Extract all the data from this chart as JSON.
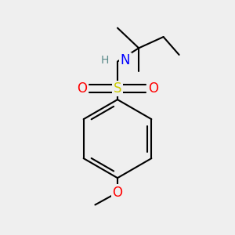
{
  "background_color": "#efefef",
  "atom_colors": {
    "C": "#000000",
    "H": "#5a8a8a",
    "N": "#0000ff",
    "O": "#ff0000",
    "S": "#cccc00"
  },
  "bond_color": "#000000",
  "bond_width": 1.5,
  "font_size_atom": 12,
  "font_size_H": 10,
  "xlim": [
    0.05,
    0.95
  ],
  "ylim": [
    0.02,
    1.05
  ]
}
